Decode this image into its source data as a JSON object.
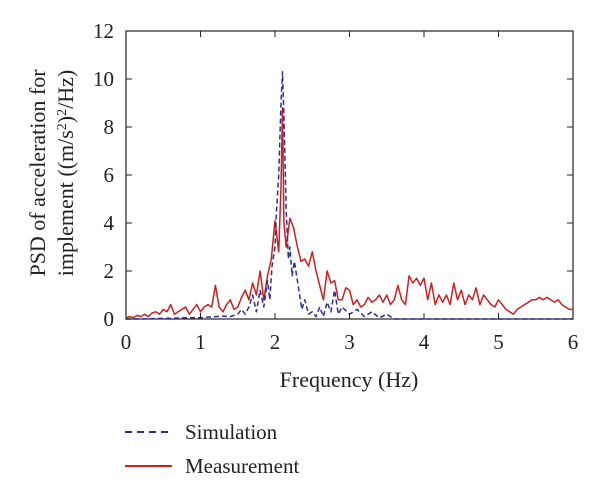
{
  "chart_data": {
    "type": "line",
    "title": "",
    "xlabel": "Frequency (Hz)",
    "ylabel_line1": "PSD of acceleration for",
    "ylabel_line2_prefix": "implement ((m/s",
    "ylabel_line2_sup": "2",
    "ylabel_line2_suffix": ")",
    "ylabel_line2_sup2": "2",
    "ylabel_line2_end": "/Hz)",
    "xlim": [
      0,
      6
    ],
    "ylim": [
      0,
      12
    ],
    "xticks": [
      0,
      1,
      2,
      3,
      4,
      5,
      6
    ],
    "yticks": [
      0,
      2,
      4,
      6,
      8,
      10,
      12
    ],
    "grid": false,
    "legend_position": "below",
    "series": [
      {
        "name": "Simulation",
        "color": "#2b2f8f",
        "style": "dashed",
        "x": [
          0,
          0.2,
          0.4,
          0.6,
          0.8,
          1.0,
          1.1,
          1.2,
          1.3,
          1.4,
          1.5,
          1.55,
          1.6,
          1.65,
          1.7,
          1.75,
          1.8,
          1.85,
          1.9,
          1.93,
          1.96,
          2.0,
          2.02,
          2.05,
          2.08,
          2.1,
          2.12,
          2.15,
          2.18,
          2.2,
          2.23,
          2.26,
          2.3,
          2.33,
          2.36,
          2.4,
          2.45,
          2.5,
          2.55,
          2.6,
          2.65,
          2.7,
          2.75,
          2.8,
          2.85,
          2.9,
          3.0,
          3.1,
          3.2,
          3.3,
          3.4,
          3.5,
          3.6,
          4.0,
          4.5,
          5.0,
          5.5,
          6.0
        ],
        "y": [
          0,
          0,
          0.02,
          0.03,
          0.05,
          0.05,
          0.08,
          0.1,
          0.12,
          0.1,
          0.2,
          0.4,
          0.2,
          0.5,
          1.0,
          0.3,
          1.2,
          0.5,
          1.6,
          0.8,
          2.2,
          3.0,
          4.5,
          6.0,
          9.0,
          10.3,
          8.5,
          4.5,
          2.5,
          3.0,
          1.8,
          2.4,
          1.6,
          1.0,
          0.4,
          0.8,
          0.2,
          0.3,
          0.1,
          0.5,
          0.1,
          0.7,
          0.3,
          1.2,
          0.2,
          0.5,
          0.2,
          0.4,
          0.1,
          0.3,
          0.05,
          0.2,
          0,
          0,
          0,
          0,
          0,
          0
        ]
      },
      {
        "name": "Measurement",
        "color": "#cc1f1f",
        "style": "solid",
        "x": [
          0,
          0.05,
          0.1,
          0.15,
          0.2,
          0.25,
          0.3,
          0.35,
          0.4,
          0.45,
          0.5,
          0.55,
          0.6,
          0.65,
          0.7,
          0.75,
          0.8,
          0.85,
          0.9,
          0.95,
          1.0,
          1.05,
          1.1,
          1.15,
          1.2,
          1.25,
          1.3,
          1.35,
          1.4,
          1.45,
          1.5,
          1.55,
          1.6,
          1.65,
          1.7,
          1.75,
          1.8,
          1.85,
          1.9,
          1.95,
          2.0,
          2.05,
          2.08,
          2.1,
          2.12,
          2.15,
          2.2,
          2.25,
          2.3,
          2.35,
          2.4,
          2.45,
          2.5,
          2.55,
          2.6,
          2.65,
          2.7,
          2.75,
          2.8,
          2.85,
          2.9,
          2.95,
          3.0,
          3.05,
          3.1,
          3.15,
          3.2,
          3.25,
          3.3,
          3.35,
          3.4,
          3.45,
          3.5,
          3.55,
          3.6,
          3.65,
          3.7,
          3.75,
          3.8,
          3.85,
          3.9,
          3.95,
          4.0,
          4.05,
          4.1,
          4.15,
          4.2,
          4.25,
          4.3,
          4.35,
          4.4,
          4.45,
          4.5,
          4.55,
          4.6,
          4.65,
          4.7,
          4.75,
          4.8,
          4.85,
          4.9,
          4.95,
          5.0,
          5.05,
          5.1,
          5.15,
          5.2,
          5.25,
          5.3,
          5.35,
          5.4,
          5.45,
          5.5,
          5.55,
          5.6,
          5.65,
          5.7,
          5.75,
          5.8,
          5.85,
          5.9,
          5.95,
          6.0
        ],
        "y": [
          0.05,
          0.1,
          0.05,
          0.15,
          0.1,
          0.2,
          0.1,
          0.25,
          0.3,
          0.2,
          0.4,
          0.3,
          0.6,
          0.2,
          0.3,
          0.4,
          0.5,
          0.2,
          0.4,
          0.6,
          0.3,
          0.5,
          0.6,
          0.5,
          1.4,
          0.5,
          0.3,
          0.6,
          0.8,
          0.4,
          0.5,
          0.9,
          1.2,
          0.8,
          1.5,
          1.0,
          2.0,
          0.8,
          1.8,
          2.5,
          4.1,
          2.8,
          5.5,
          8.8,
          4.0,
          3.0,
          4.2,
          3.8,
          3.0,
          2.4,
          2.5,
          2.2,
          2.8,
          2.0,
          1.4,
          0.8,
          2.0,
          1.5,
          1.6,
          0.8,
          0.8,
          1.3,
          1.2,
          0.6,
          0.8,
          0.5,
          0.6,
          0.9,
          0.7,
          0.8,
          1.0,
          0.7,
          1.0,
          0.6,
          0.8,
          1.4,
          0.8,
          0.6,
          1.8,
          1.5,
          1.7,
          1.4,
          1.7,
          0.8,
          1.5,
          0.6,
          1.0,
          0.7,
          1.0,
          0.6,
          1.5,
          0.8,
          1.2,
          0.6,
          1.0,
          0.8,
          1.3,
          0.6,
          1.0,
          0.8,
          0.6,
          0.5,
          0.8,
          0.6,
          0.4,
          0.3,
          0.2,
          0.4,
          0.5,
          0.6,
          0.7,
          0.8,
          0.8,
          0.9,
          0.8,
          0.9,
          0.8,
          0.7,
          0.8,
          0.6,
          0.5,
          0.4,
          0.4
        ]
      }
    ]
  }
}
